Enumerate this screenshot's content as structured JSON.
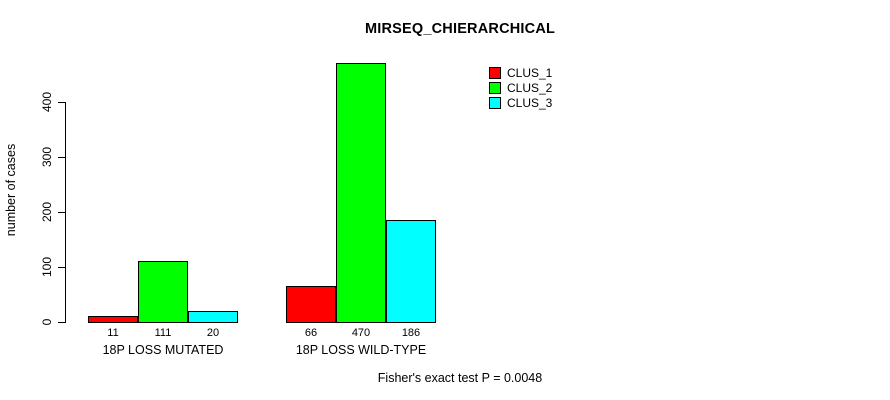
{
  "chart_data": {
    "type": "bar",
    "title": "MIRSEQ_CHIERARCHICAL",
    "ylabel": "number of cases",
    "xlabel": "",
    "categories": [
      "18P LOSS MUTATED",
      "18P LOSS WILD-TYPE"
    ],
    "series": [
      {
        "name": "CLUS_1",
        "color": "#FF0000",
        "values": [
          11,
          66
        ]
      },
      {
        "name": "CLUS_2",
        "color": "#00FF00",
        "values": [
          111,
          470
        ]
      },
      {
        "name": "CLUS_3",
        "color": "#00FFFF",
        "values": [
          20,
          186
        ]
      }
    ],
    "bar_value_labels": [
      [
        11,
        111,
        20
      ],
      [
        66,
        470,
        186
      ]
    ],
    "yticks": [
      0,
      100,
      200,
      300,
      400
    ],
    "ylim": [
      0,
      480
    ],
    "grid": false,
    "legend_position": "top-right",
    "annotation": "Fisher's exact test P = 0.0048"
  },
  "legend": {
    "items": [
      {
        "label": "CLUS_1",
        "color": "#FF0000"
      },
      {
        "label": "CLUS_2",
        "color": "#00FF00"
      },
      {
        "label": "CLUS_3",
        "color": "#00FFFF"
      }
    ]
  },
  "colors": {
    "clus_1": "#FF0000",
    "clus_2": "#00FF00",
    "clus_3": "#00FFFF",
    "axis": "#000000",
    "background": "#FFFFFF"
  },
  "footer": {
    "text": "Fisher's exact test P = 0.0048"
  }
}
